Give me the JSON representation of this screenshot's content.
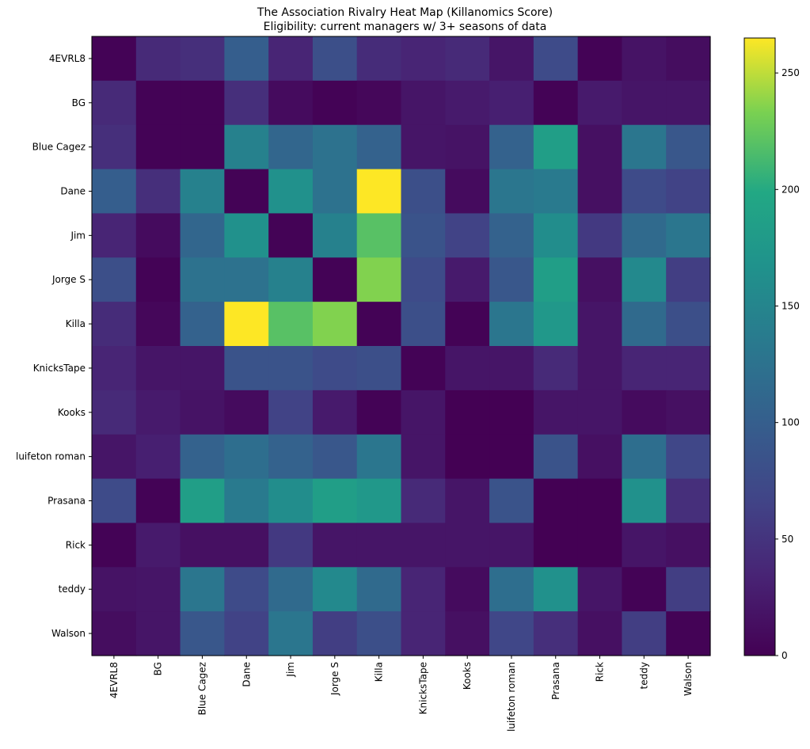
{
  "chart_data": {
    "type": "heatmap",
    "title": "The Association Rivalry Heat Map (Killanomics Score)",
    "subtitle": "Eligibility: current managers w/ 3+ seasons of data",
    "rows": [
      "4EVRL8",
      "BG",
      "Blue Cagez",
      "Dane",
      "Jim",
      "Jorge S",
      "Killa",
      "KnicksTape",
      "Kooks",
      "luifeton roman",
      "Prasana",
      "Rick",
      "teddy",
      "Walson"
    ],
    "cols": [
      "4EVRL8",
      "BG",
      "Blue Cagez",
      "Dane",
      "Jim",
      "Jorge S",
      "Killa",
      "KnicksTape",
      "Kooks",
      "luifeton roman",
      "Prasana",
      "Rick",
      "teddy",
      "Walson"
    ],
    "values": [
      [
        2,
        40,
        45,
        100,
        35,
        80,
        42,
        35,
        40,
        20,
        75,
        2,
        18,
        12
      ],
      [
        40,
        2,
        2,
        45,
        10,
        2,
        6,
        20,
        25,
        30,
        2,
        25,
        20,
        20
      ],
      [
        45,
        2,
        2,
        145,
        110,
        125,
        105,
        20,
        18,
        105,
        185,
        15,
        130,
        90
      ],
      [
        100,
        45,
        145,
        2,
        165,
        125,
        265,
        80,
        10,
        130,
        135,
        15,
        75,
        65
      ],
      [
        35,
        10,
        110,
        165,
        2,
        145,
        220,
        85,
        65,
        105,
        160,
        55,
        115,
        130
      ],
      [
        80,
        2,
        125,
        125,
        145,
        2,
        235,
        75,
        25,
        90,
        185,
        15,
        155,
        60
      ],
      [
        42,
        6,
        105,
        265,
        220,
        235,
        2,
        80,
        2,
        130,
        175,
        20,
        115,
        80
      ],
      [
        35,
        20,
        20,
        85,
        85,
        75,
        80,
        2,
        20,
        20,
        40,
        20,
        35,
        35
      ],
      [
        40,
        25,
        18,
        10,
        65,
        25,
        2,
        20,
        0,
        0,
        20,
        20,
        10,
        15
      ],
      [
        20,
        30,
        105,
        120,
        105,
        90,
        130,
        20,
        0,
        0,
        85,
        15,
        120,
        70
      ],
      [
        75,
        2,
        185,
        135,
        160,
        185,
        175,
        40,
        20,
        85,
        0,
        0,
        165,
        45
      ],
      [
        2,
        25,
        15,
        15,
        55,
        20,
        20,
        20,
        20,
        20,
        0,
        0,
        20,
        15
      ],
      [
        18,
        20,
        130,
        75,
        115,
        155,
        115,
        35,
        10,
        120,
        165,
        20,
        2,
        60
      ],
      [
        12,
        20,
        90,
        65,
        130,
        60,
        80,
        35,
        15,
        70,
        45,
        15,
        60,
        2
      ]
    ],
    "colormap": "viridis",
    "colorbar": {
      "min": 0,
      "max": 265,
      "ticks": [
        0,
        50,
        100,
        150,
        200,
        250
      ]
    }
  }
}
